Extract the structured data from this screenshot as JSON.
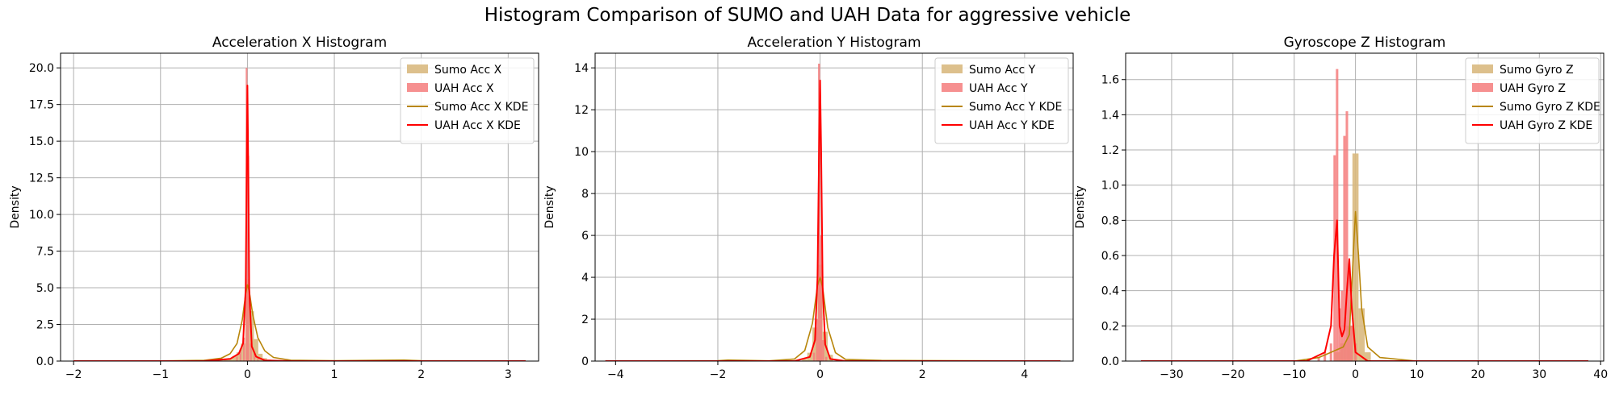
{
  "figure": {
    "suptitle": "Histogram Comparison of SUMO and UAH Data for aggressive vehicle"
  },
  "colors": {
    "sumo_hist": "#d9b97f",
    "uah_hist": "#f47c7c",
    "sumo_kde": "#b8860b",
    "uah_kde": "#ff0000",
    "grid": "#b0b0b0",
    "axis": "#000000"
  },
  "chart_data": [
    {
      "type": "histogram",
      "title": "Acceleration X Histogram",
      "ylabel": "Density",
      "xlabel": "",
      "xlim": [
        -2.15,
        3.35
      ],
      "ylim": [
        0,
        21
      ],
      "xticks": [
        -2,
        -1,
        0,
        1,
        2,
        3
      ],
      "yticks": [
        0.0,
        2.5,
        5.0,
        7.5,
        10.0,
        12.5,
        15.0,
        17.5,
        20.0
      ],
      "yticklabels": [
        "0.0",
        "2.5",
        "5.0",
        "7.5",
        "10.0",
        "12.5",
        "15.0",
        "17.5",
        "20.0"
      ],
      "grid": true,
      "legend_position": "top-right",
      "series": [
        {
          "name": "Sumo Acc X",
          "kind": "histogram",
          "bins": [
            [
              -0.3,
              0.05
            ],
            [
              -0.25,
              0.1
            ],
            [
              -0.2,
              0.2
            ],
            [
              -0.15,
              0.35
            ],
            [
              -0.1,
              0.6
            ],
            [
              -0.05,
              1.2
            ],
            [
              0.0,
              5.6
            ],
            [
              0.05,
              3.4
            ],
            [
              0.1,
              1.5
            ],
            [
              0.15,
              0.5
            ],
            [
              0.2,
              0.2
            ],
            [
              0.25,
              0.1
            ]
          ],
          "bin_width": 0.05
        },
        {
          "name": "UAH Acc X",
          "kind": "histogram",
          "bins": [
            [
              -0.12,
              0.3
            ],
            [
              -0.08,
              0.8
            ],
            [
              -0.04,
              1.6
            ],
            [
              -0.01,
              20.0
            ],
            [
              0.01,
              14.0
            ],
            [
              0.04,
              1.2
            ],
            [
              0.08,
              0.5
            ],
            [
              0.12,
              0.2
            ]
          ],
          "bin_width": 0.02
        },
        {
          "name": "Sumo Acc X KDE",
          "kind": "line",
          "points": [
            [
              -2.0,
              0.0
            ],
            [
              -1.0,
              0.01
            ],
            [
              -0.5,
              0.05
            ],
            [
              -0.3,
              0.2
            ],
            [
              -0.2,
              0.5
            ],
            [
              -0.12,
              1.2
            ],
            [
              -0.06,
              2.8
            ],
            [
              -0.02,
              4.6
            ],
            [
              0.0,
              5.2
            ],
            [
              0.02,
              4.8
            ],
            [
              0.06,
              3.2
            ],
            [
              0.12,
              1.6
            ],
            [
              0.2,
              0.7
            ],
            [
              0.3,
              0.25
            ],
            [
              0.5,
              0.06
            ],
            [
              1.0,
              0.02
            ],
            [
              1.8,
              0.07
            ],
            [
              2.0,
              0.02
            ],
            [
              3.2,
              0.0
            ]
          ]
        },
        {
          "name": "UAH Acc X KDE",
          "kind": "line",
          "points": [
            [
              -2.0,
              0.0
            ],
            [
              -0.5,
              0.0
            ],
            [
              -0.2,
              0.15
            ],
            [
              -0.1,
              0.5
            ],
            [
              -0.05,
              1.2
            ],
            [
              -0.02,
              5.0
            ],
            [
              -0.01,
              12.0
            ],
            [
              0.0,
              18.8
            ],
            [
              0.01,
              13.0
            ],
            [
              0.02,
              5.0
            ],
            [
              0.05,
              1.0
            ],
            [
              0.1,
              0.3
            ],
            [
              0.2,
              0.05
            ],
            [
              0.5,
              0.0
            ],
            [
              3.2,
              0.0
            ]
          ]
        }
      ]
    },
    {
      "type": "histogram",
      "title": "Acceleration Y Histogram",
      "ylabel": "Density",
      "xlabel": "",
      "xlim": [
        -4.4,
        4.95
      ],
      "ylim": [
        0,
        14.7
      ],
      "xticks": [
        -4,
        -2,
        0,
        2,
        4
      ],
      "yticks": [
        0,
        2,
        4,
        6,
        8,
        10,
        12,
        14
      ],
      "yticklabels": [
        "0",
        "2",
        "4",
        "6",
        "8",
        "10",
        "12",
        "14"
      ],
      "grid": true,
      "legend_position": "top-right",
      "series": [
        {
          "name": "Sumo Acc Y",
          "kind": "histogram",
          "bins": [
            [
              -0.3,
              0.1
            ],
            [
              -0.2,
              0.4
            ],
            [
              -0.1,
              1.6
            ],
            [
              0.0,
              4.6
            ],
            [
              0.1,
              1.4
            ],
            [
              0.2,
              0.3
            ]
          ],
          "bin_width": 0.1
        },
        {
          "name": "UAH Acc Y",
          "kind": "histogram",
          "bins": [
            [
              -0.12,
              0.4
            ],
            [
              -0.06,
              2.0
            ],
            [
              -0.02,
              14.2
            ],
            [
              0.02,
              6.0
            ],
            [
              0.06,
              1.0
            ],
            [
              0.12,
              0.2
            ]
          ],
          "bin_width": 0.04
        },
        {
          "name": "Sumo Acc Y KDE",
          "kind": "line",
          "points": [
            [
              -4.2,
              0.0
            ],
            [
              -2.0,
              0.02
            ],
            [
              -1.8,
              0.05
            ],
            [
              -1.0,
              0.01
            ],
            [
              -0.5,
              0.1
            ],
            [
              -0.3,
              0.5
            ],
            [
              -0.15,
              1.8
            ],
            [
              -0.05,
              3.6
            ],
            [
              0.0,
              4.0
            ],
            [
              0.05,
              3.5
            ],
            [
              0.15,
              1.6
            ],
            [
              0.3,
              0.4
            ],
            [
              0.5,
              0.08
            ],
            [
              1.2,
              0.03
            ],
            [
              4.7,
              0.0
            ]
          ]
        },
        {
          "name": "UAH Acc Y KDE",
          "kind": "line",
          "points": [
            [
              -4.2,
              0.0
            ],
            [
              -0.5,
              0.0
            ],
            [
              -0.2,
              0.2
            ],
            [
              -0.1,
              1.0
            ],
            [
              -0.05,
              4.0
            ],
            [
              -0.02,
              10.0
            ],
            [
              0.0,
              13.4
            ],
            [
              0.02,
              10.0
            ],
            [
              0.05,
              3.5
            ],
            [
              0.1,
              0.8
            ],
            [
              0.2,
              0.1
            ],
            [
              0.5,
              0.0
            ],
            [
              4.7,
              0.0
            ]
          ]
        }
      ]
    },
    {
      "type": "histogram",
      "title": "Gyroscope Z Histogram",
      "ylabel": "Density",
      "xlabel": "",
      "xlim": [
        -37.5,
        40.5
      ],
      "ylim": [
        0,
        1.75
      ],
      "xticks": [
        -30,
        -20,
        -10,
        0,
        10,
        20,
        30,
        40
      ],
      "yticks": [
        0.0,
        0.2,
        0.4,
        0.6,
        0.8,
        1.0,
        1.2,
        1.4,
        1.6
      ],
      "yticklabels": [
        "0.0",
        "0.2",
        "0.4",
        "0.6",
        "0.8",
        "1.0",
        "1.2",
        "1.4",
        "1.6"
      ],
      "grid": true,
      "legend_position": "top-right",
      "series": [
        {
          "name": "Sumo Gyro Z",
          "kind": "histogram",
          "bins": [
            [
              -3.0,
              0.05
            ],
            [
              -2.0,
              0.1
            ],
            [
              -1.0,
              0.2
            ],
            [
              0.0,
              1.18
            ],
            [
              1.0,
              0.3
            ],
            [
              2.0,
              0.05
            ]
          ],
          "bin_width": 1.0
        },
        {
          "name": "UAH Gyro Z",
          "kind": "histogram",
          "bins": [
            [
              -6.0,
              0.02
            ],
            [
              -5.0,
              0.05
            ],
            [
              -4.0,
              0.1
            ],
            [
              -3.4,
              1.17
            ],
            [
              -3.0,
              1.66
            ],
            [
              -2.6,
              0.3
            ],
            [
              -2.2,
              0.4
            ],
            [
              -1.8,
              1.28
            ],
            [
              -1.4,
              1.42
            ],
            [
              -1.0,
              0.5
            ],
            [
              -0.6,
              0.2
            ],
            [
              0.0,
              0.1
            ]
          ],
          "bin_width": 0.4
        },
        {
          "name": "Sumo Gyro Z KDE",
          "kind": "line",
          "points": [
            [
              -35.0,
              0.0
            ],
            [
              -10.0,
              0.0
            ],
            [
              -6.0,
              0.02
            ],
            [
              -4.0,
              0.05
            ],
            [
              -2.0,
              0.08
            ],
            [
              -1.0,
              0.15
            ],
            [
              -0.5,
              0.5
            ],
            [
              0.0,
              0.85
            ],
            [
              0.5,
              0.6
            ],
            [
              1.0,
              0.3
            ],
            [
              2.0,
              0.08
            ],
            [
              4.0,
              0.02
            ],
            [
              10.0,
              0.0
            ],
            [
              38.0,
              0.0
            ]
          ]
        },
        {
          "name": "UAH Gyro Z KDE",
          "kind": "line",
          "points": [
            [
              -35.0,
              0.0
            ],
            [
              -8.0,
              0.0
            ],
            [
              -5.0,
              0.05
            ],
            [
              -4.0,
              0.2
            ],
            [
              -3.5,
              0.6
            ],
            [
              -3.0,
              0.8
            ],
            [
              -2.6,
              0.2
            ],
            [
              -2.2,
              0.14
            ],
            [
              -1.8,
              0.18
            ],
            [
              -1.4,
              0.4
            ],
            [
              -1.0,
              0.58
            ],
            [
              -0.6,
              0.3
            ],
            [
              0.0,
              0.05
            ],
            [
              2.0,
              0.0
            ],
            [
              38.0,
              0.0
            ]
          ]
        }
      ]
    }
  ]
}
